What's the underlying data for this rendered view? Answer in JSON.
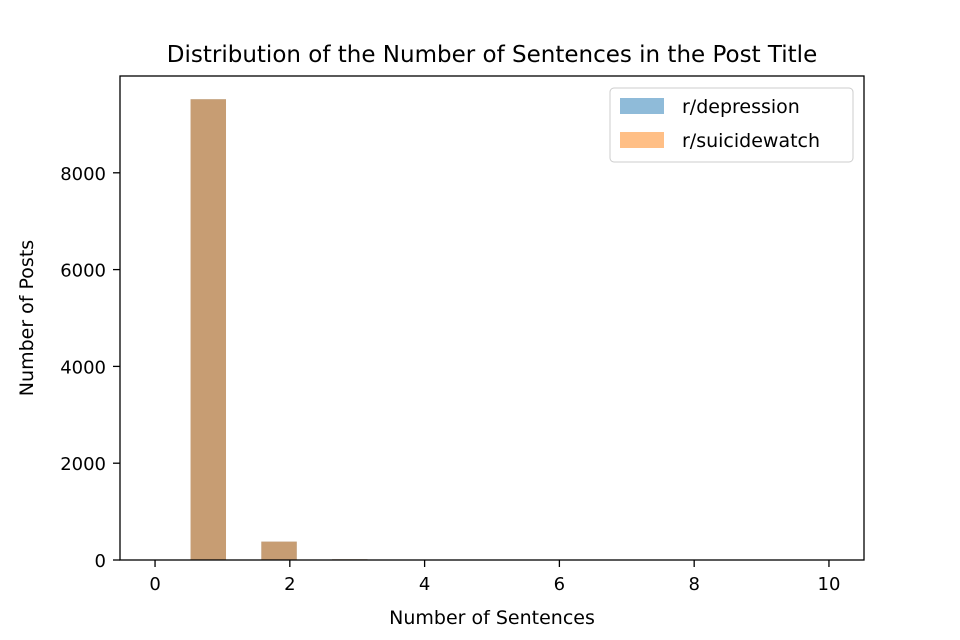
{
  "chart_data": {
    "type": "bar",
    "title": "Distribution of the Number of Sentences in the Post Title",
    "xlabel": "Number of Sentences",
    "ylabel": "Number of Posts",
    "xlim": [
      -0.52,
      10.52
    ],
    "ylim": [
      0,
      10000
    ],
    "xticks": [
      0,
      2,
      4,
      6,
      8,
      10
    ],
    "yticks": [
      0,
      2000,
      4000,
      6000,
      8000
    ],
    "bin_width": 0.526,
    "bin_centers": [
      0.79,
      1.84,
      2.89
    ],
    "series": [
      {
        "name": "r/depression",
        "color": "#1f77b4",
        "opacity": 0.5,
        "values": [
          9520,
          380,
          15
        ]
      },
      {
        "name": "r/suicidewatch",
        "color": "#ff7f0e",
        "opacity": 0.5,
        "values": [
          9520,
          380,
          15
        ]
      }
    ],
    "legend_position": "top-right",
    "grid": false
  }
}
